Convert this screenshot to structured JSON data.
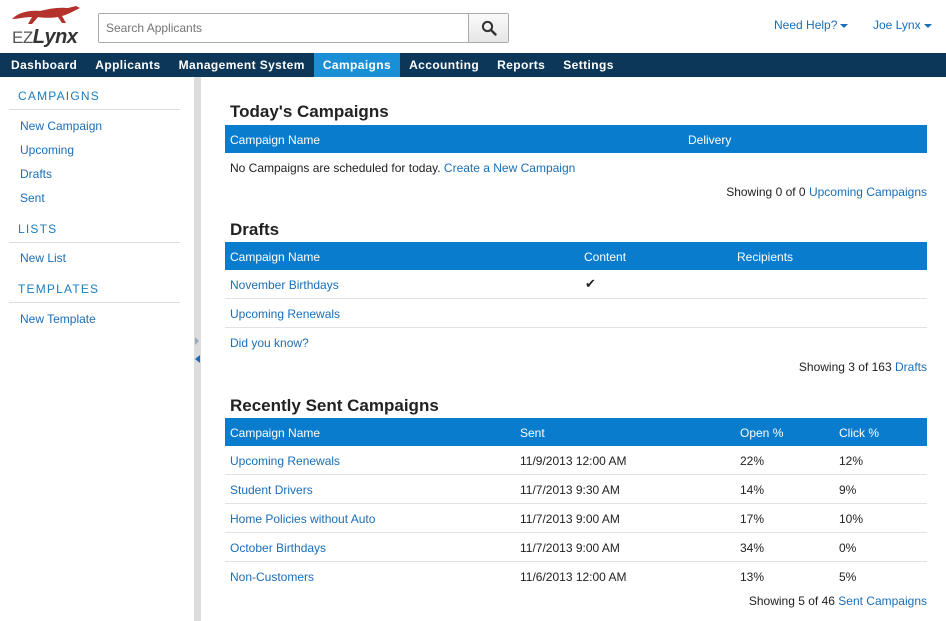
{
  "header": {
    "logo_ez": "EZ",
    "logo_lynx": "Lynx",
    "search_placeholder": "Search Applicants",
    "help_label": "Need Help?",
    "user_label": "Joe Lynx"
  },
  "nav": {
    "items": [
      "Dashboard",
      "Applicants",
      "Management System",
      "Campaigns",
      "Accounting",
      "Reports",
      "Settings"
    ],
    "active": "Campaigns"
  },
  "sidebar": {
    "campaigns_heading": "CAMPAIGNS",
    "campaign_links": [
      "New Campaign",
      "Upcoming",
      "Drafts",
      "Sent"
    ],
    "lists_heading": "LISTS",
    "list_links": [
      "New List"
    ],
    "templates_heading": "TEMPLATES",
    "template_links": [
      "New Template"
    ]
  },
  "today": {
    "title": "Today's Campaigns",
    "columns": [
      "Campaign Name",
      "Delivery"
    ],
    "empty_text": "No Campaigns are scheduled for today.",
    "create_link": "Create a New Campaign",
    "summary_text": "Showing 0 of 0",
    "summary_link": "Upcoming Campaigns"
  },
  "drafts": {
    "title": "Drafts",
    "columns": [
      "Campaign Name",
      "Content",
      "Recipients"
    ],
    "rows": [
      {
        "name": "November Birthdays",
        "content": "✔"
      },
      {
        "name": "Upcoming Renewals",
        "content": ""
      },
      {
        "name": "Did you know?",
        "content": ""
      }
    ],
    "summary_text": "Showing 3 of 163",
    "summary_link": "Drafts"
  },
  "sent": {
    "title": "Recently Sent Campaigns",
    "columns": [
      "Campaign Name",
      "Sent",
      "Open %",
      "Click %"
    ],
    "rows": [
      {
        "name": "Upcoming Renewals",
        "sent": "11/9/2013 12:00 AM",
        "open": "22%",
        "click": "12%"
      },
      {
        "name": "Student Drivers",
        "sent": "11/7/2013 9:30 AM",
        "open": "14%",
        "click": "9%"
      },
      {
        "name": "Home Policies without Auto",
        "sent": "11/7/2013 9:00 AM",
        "open": "17%",
        "click": "10%"
      },
      {
        "name": "October Birthdays",
        "sent": "11/7/2013 9:00 AM",
        "open": "34%",
        "click": "0%"
      },
      {
        "name": "Non-Customers",
        "sent": "11/6/2013 12:00 AM",
        "open": "13%",
        "click": "5%"
      }
    ],
    "summary_text": "Showing 5 of 46",
    "summary_link": "Sent Campaigns"
  },
  "colors": {
    "nav_bg": "#0c3759",
    "nav_active": "#1a8fd5",
    "table_header": "#0a7ccd",
    "link": "#1a6eb7",
    "logo_red": "#b5312c"
  }
}
